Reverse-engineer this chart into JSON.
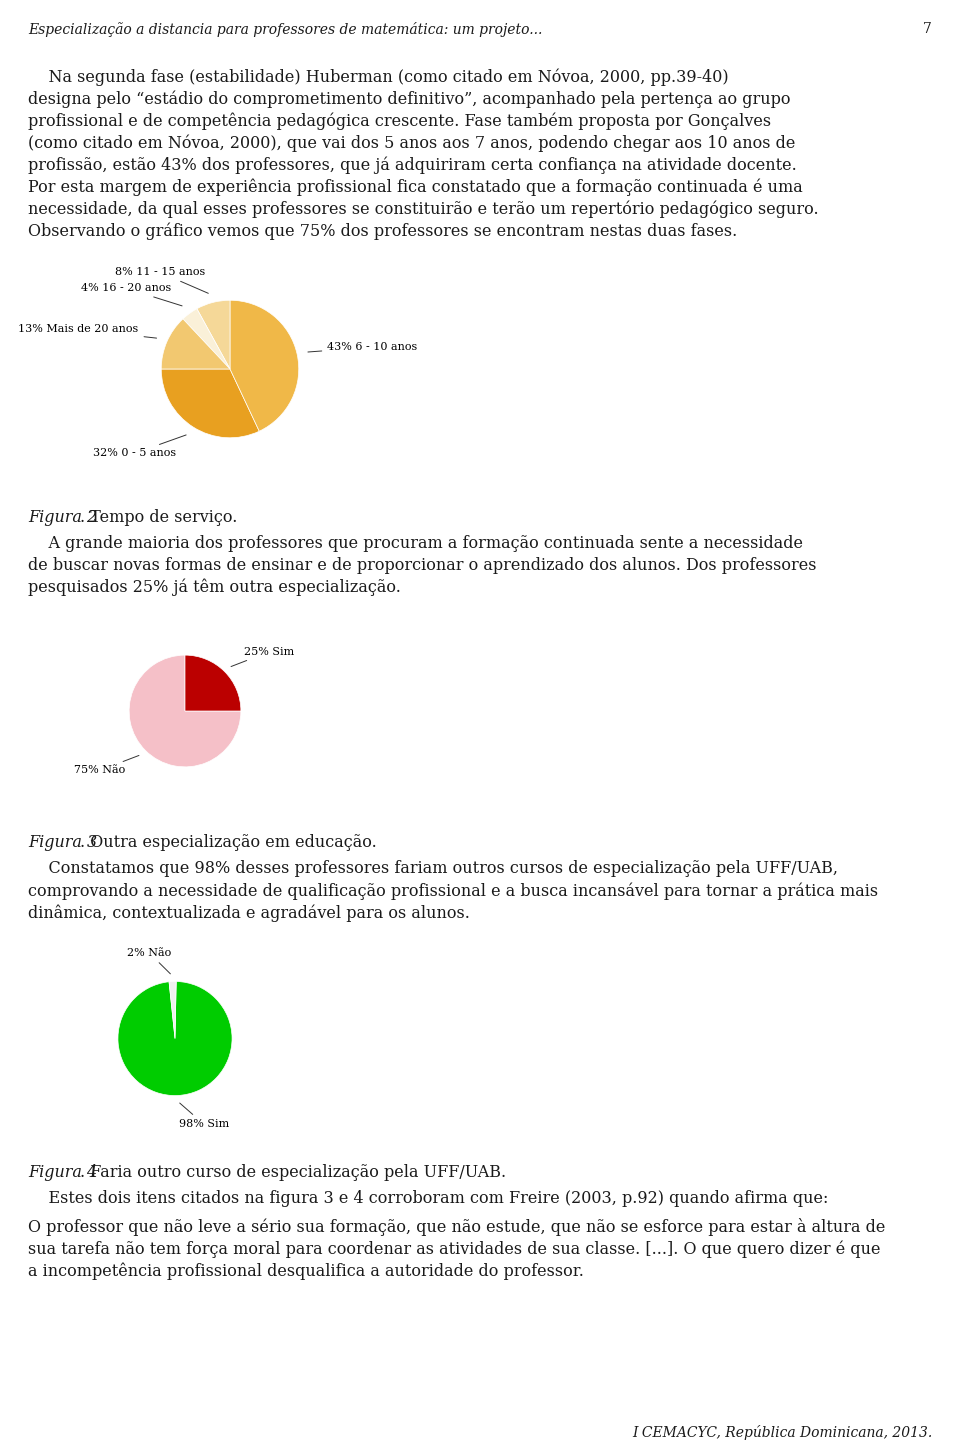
{
  "page_header": "Especialização a distancia para professores de matemática: um projeto...",
  "page_number": "7",
  "bg_color": "#ffffff",
  "para1_line1": "    Na segunda fase (estabilidade) Huberman (como citado em Nóvoa, 2000, pp.39-40)",
  "para1_line2": "designa pelo “estádio do comprometimento definitivo”, acompanhado pela pertença ao grupo",
  "para1_line3": "profissional e de competência pedagógica crescente. Fase também proposta por Gonçalves",
  "para1_line4": "(como citado em Nóvoa, 2000), que vai dos 5 anos aos 7 anos, podendo chegar aos 10 anos de",
  "para1_line5": "profissão, estão 43% dos professores, que já adquiriram certa confiança na atividade docente.",
  "para1_line6": "Por esta margem de experiência profissional fica constatado que a formação continuada é uma",
  "para1_line7": "necessidade, da qual esses professores se constituirão e terão um repertório pedagógico seguro.",
  "para1_line8": "Observando o gráfico vemos que 75% dos professores se encontram nestas duas fases.",
  "chart1_values": [
    32,
    43,
    8,
    4,
    13
  ],
  "chart1_colors": [
    "#E8A020",
    "#F0B848",
    "#F5D898",
    "#FAF0D8",
    "#F2C870"
  ],
  "chart1_startangle": 180,
  "chart1_label_0": "32% 0 - 5 anos",
  "chart1_label_1": "43% 6 - 10 anos",
  "chart1_label_2": "8% 11 - 15 anos",
  "chart1_label_3": "4% 16 - 20 anos",
  "chart1_label_4": "13% Mais de 20 anos",
  "chart1_caption_italic": "Figura 2",
  "chart1_caption_normal": ". Tempo de serviço.",
  "para2_line1": "    A grande maioria dos professores que procuram a formação continuada sente a necessidade",
  "para2_line2": "de buscar novas formas de ensinar e de proporcionar o aprendizado dos alunos. Dos professores",
  "para2_line3": "pesquisados 25% já têm outra especialização.",
  "chart2_values": [
    75,
    25
  ],
  "chart2_colors": [
    "#F5C0C8",
    "#BB0000"
  ],
  "chart2_startangle": 90,
  "chart2_label_0": "75% Não",
  "chart2_label_1": "25% Sim",
  "chart2_caption_italic": "Figura 3",
  "chart2_caption_normal": ". Outra especialização em educação.",
  "para3_line1": "    Constatamos que 98% desses professores fariam outros cursos de especialização pela UFF/UAB,",
  "para3_line2": "comprovando a necessidade de qualificação profissional e a busca incansável para tornar a prática mais",
  "para3_line3": "dinâmica, contextualizada e agradável para os alunos.",
  "chart3_values": [
    98,
    2
  ],
  "chart3_colors": [
    "#00CC00",
    "#f0f0f0"
  ],
  "chart3_startangle": 96,
  "chart3_label_0": "98% Sim",
  "chart3_label_1": "2% Não",
  "chart3_caption_italic": "Figura 4",
  "chart3_caption_normal": ". Faria outro curso de especialização pela UFF/UAB.",
  "para4": "    Estes dois itens citados na figura 3 e 4 corroboram com Freire (2003, p.92) quando afirma que:",
  "quote_line1": "O professor que não leve a sério sua formação, que não estude, que não se esforce para estar à altura de",
  "quote_line2": "sua tarefa não tem força moral para coordenar as atividades de sua classe. [...]. O que quero dizer é que",
  "quote_line3": "a incompetência profissional desqualifica a autoridade do professor.",
  "footer": "I CEMACYC, República Dominicana, 2013."
}
